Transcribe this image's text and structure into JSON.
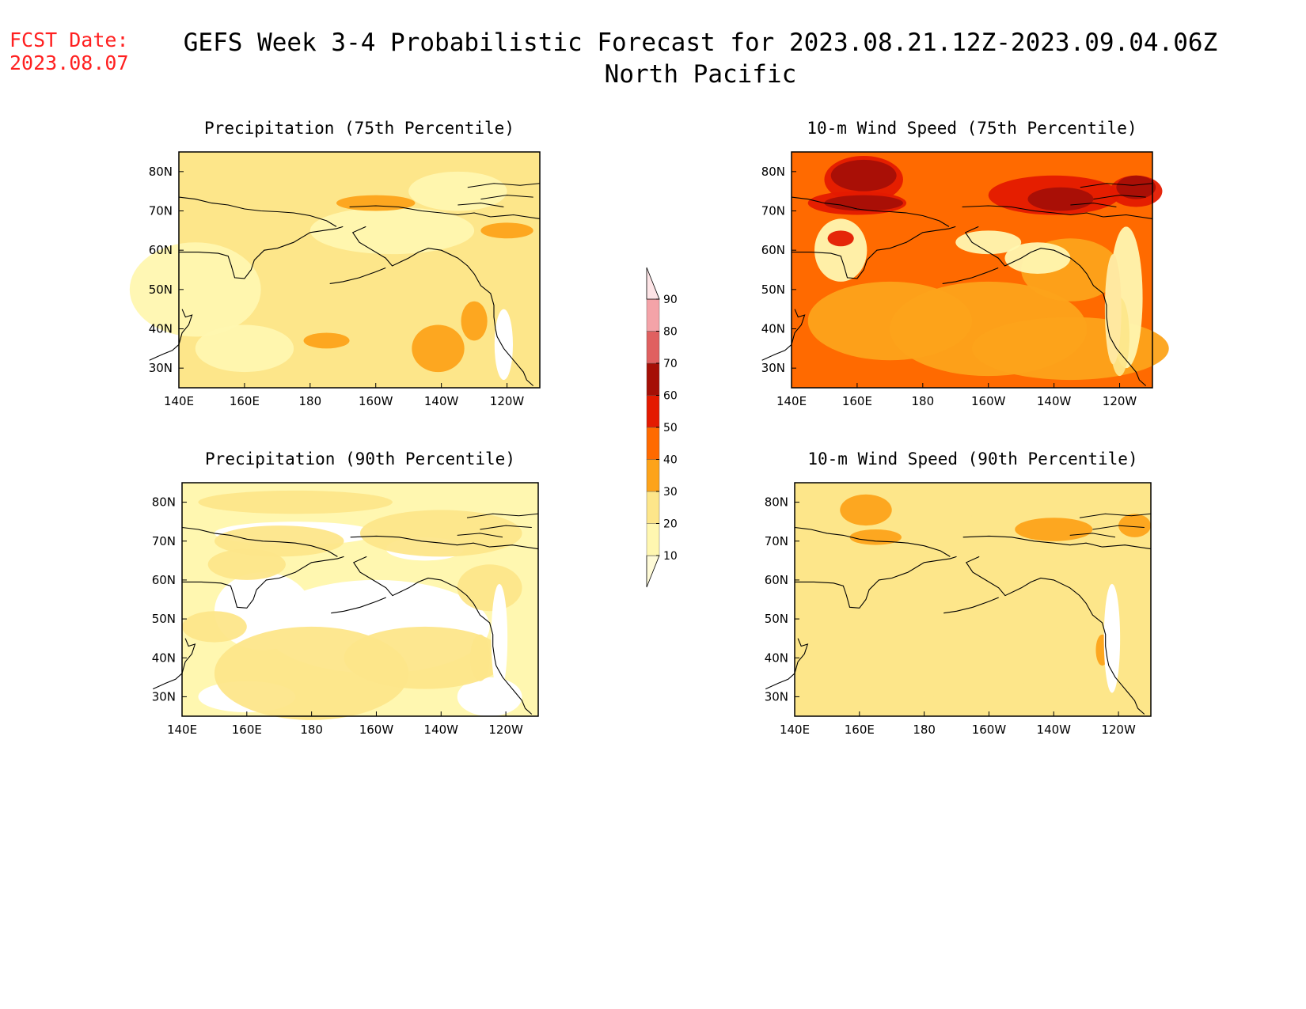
{
  "header": {
    "fcst_label": "FCST Date:",
    "fcst_date": "2023.08.07",
    "title": "GEFS Week 3-4 Probabilistic Forecast for 2023.08.21.12Z-2023.09.04.06Z",
    "subtitle": "North Pacific"
  },
  "axes": {
    "x_ticks": [
      "140E",
      "160E",
      "180",
      "160W",
      "140W",
      "120W"
    ],
    "y_ticks": [
      "80N",
      "70N",
      "60N",
      "50N",
      "40N",
      "30N"
    ]
  },
  "panels": [
    {
      "id": "precip75",
      "title": "Precipitation (75th Percentile)",
      "base_level": 20
    },
    {
      "id": "wind75",
      "title": "10-m Wind Speed (75th Percentile)",
      "base_level": 40
    },
    {
      "id": "precip90",
      "title": "Precipitation (90th Percentile)",
      "base_level": 10
    },
    {
      "id": "wind90",
      "title": "10-m Wind Speed (90th Percentile)",
      "base_level": 20
    }
  ],
  "colorbar": {
    "levels": [
      "10",
      "20",
      "30",
      "40",
      "50",
      "60",
      "70",
      "80",
      "90"
    ],
    "colors": [
      "#fff7b0",
      "#fde68a",
      "#fda31a",
      "#ff6a00",
      "#e41a00",
      "#a50f06",
      "#e06060",
      "#f4a3a8",
      "#fde4e6"
    ]
  },
  "palette": {
    "white": "#ffffff",
    "lvl10": "#fff7b0",
    "lvl20": "#fde68a",
    "lvl30": "#fda31a",
    "lvl40": "#ff6a00",
    "lvl50": "#e41a00",
    "lvl60": "#a50f06",
    "title_red": "#ff2020"
  }
}
